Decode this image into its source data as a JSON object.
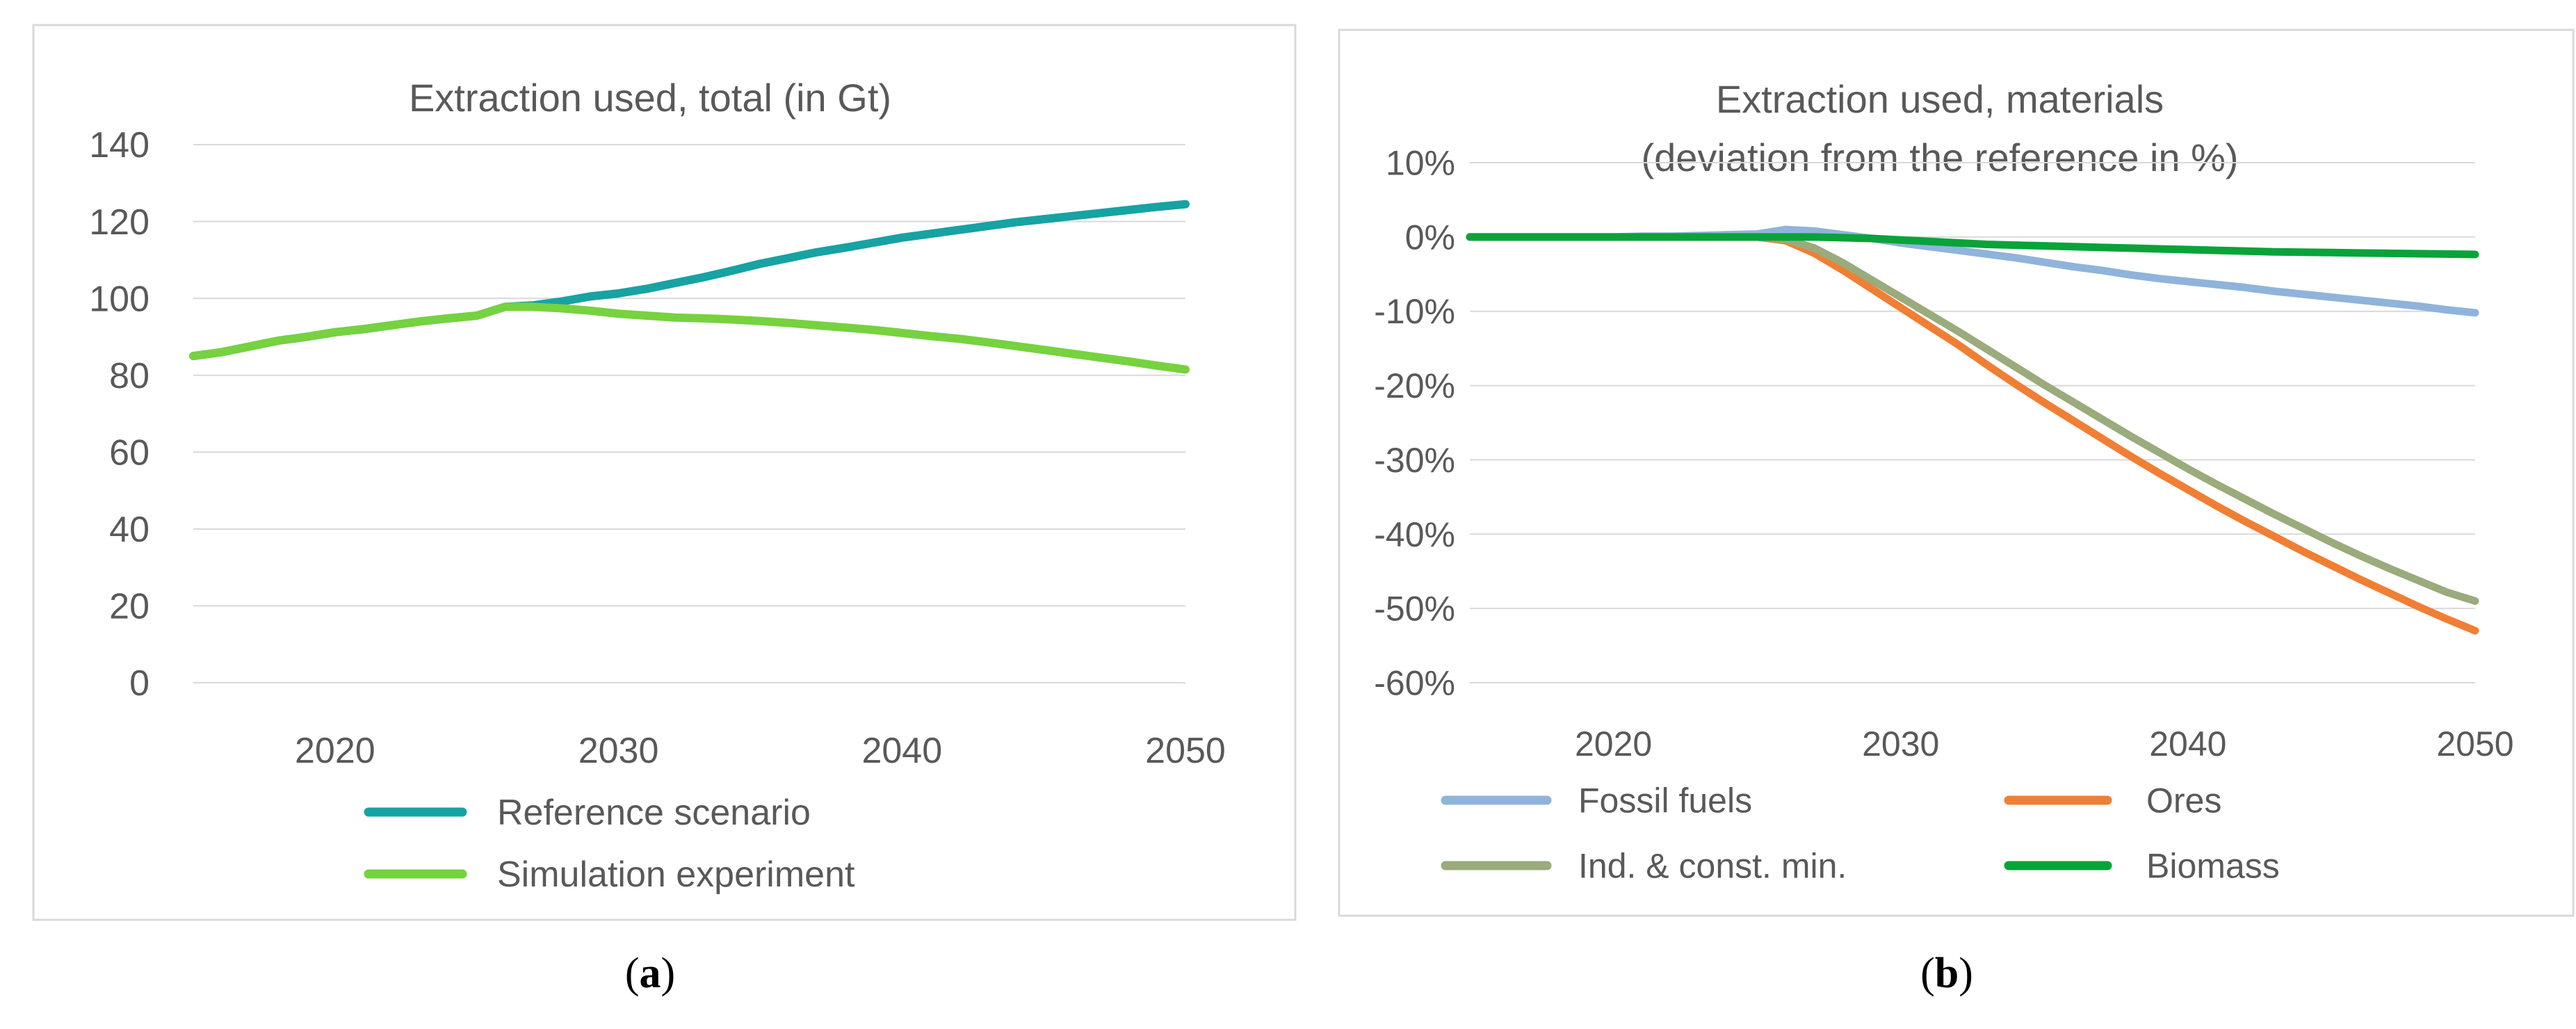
{
  "chart_data": [
    {
      "panel_id": "a",
      "type": "line",
      "title": "Extraction used, total (in Gt)",
      "caption": {
        "open": "(",
        "letter": "a",
        "close": ")"
      },
      "xlim": [
        2015,
        2050
      ],
      "ylim": [
        0,
        140
      ],
      "xticks": [
        2020,
        2030,
        2040,
        2050
      ],
      "yticks": [
        0,
        20,
        40,
        60,
        80,
        100,
        120,
        140
      ],
      "ytick_labels": [
        "0",
        "20",
        "40",
        "60",
        "80",
        "100",
        "120",
        "140"
      ],
      "grid": true,
      "legend_position": "bottom",
      "x": [
        2015,
        2016,
        2017,
        2018,
        2019,
        2020,
        2021,
        2022,
        2023,
        2024,
        2025,
        2026,
        2027,
        2028,
        2029,
        2030,
        2031,
        2032,
        2033,
        2034,
        2035,
        2036,
        2037,
        2038,
        2039,
        2040,
        2041,
        2042,
        2043,
        2044,
        2045,
        2046,
        2047,
        2048,
        2049,
        2050
      ],
      "series": [
        {
          "name": "Reference scenario",
          "color": "#17a2a3",
          "values": [
            85,
            86,
            87.5,
            89,
            90,
            91.2,
            92,
            93,
            94,
            94.8,
            95.5,
            97.8,
            98.2,
            99.2,
            100.5,
            101.3,
            102.5,
            104,
            105.5,
            107.2,
            109,
            110.5,
            112,
            113.2,
            114.5,
            115.8,
            116.8,
            117.8,
            118.8,
            119.8,
            120.6,
            121.4,
            122.2,
            123,
            123.8,
            124.5
          ]
        },
        {
          "name": "Simulation experiment",
          "color": "#76d23f",
          "values": [
            85,
            86,
            87.5,
            89,
            90,
            91.2,
            92,
            93,
            94,
            94.8,
            95.5,
            97.8,
            97.8,
            97.4,
            96.8,
            96,
            95.5,
            95,
            94.8,
            94.5,
            94.1,
            93.6,
            93,
            92.4,
            91.8,
            91,
            90.2,
            89.5,
            88.6,
            87.6,
            86.6,
            85.6,
            84.6,
            83.6,
            82.5,
            81.5
          ]
        }
      ]
    },
    {
      "panel_id": "b",
      "type": "line",
      "title_lines": [
        "Extraction used, materials",
        "(deviation from the reference in %)"
      ],
      "caption": {
        "open": "(",
        "letter": "b",
        "close": ")"
      },
      "xlim": [
        2015,
        2050
      ],
      "ylim": [
        -60,
        10
      ],
      "xticks": [
        2020,
        2030,
        2040,
        2050
      ],
      "yticks": [
        10,
        0,
        -10,
        -20,
        -30,
        -40,
        -50,
        -60
      ],
      "ytick_labels": [
        "10%",
        "0%",
        "-10%",
        "-20%",
        "-30%",
        "-40%",
        "-50%",
        "-60%"
      ],
      "grid": true,
      "legend_position": "bottom",
      "x": [
        2015,
        2016,
        2017,
        2018,
        2019,
        2020,
        2021,
        2022,
        2023,
        2024,
        2025,
        2026,
        2027,
        2028,
        2029,
        2030,
        2031,
        2032,
        2033,
        2034,
        2035,
        2036,
        2037,
        2038,
        2039,
        2040,
        2041,
        2042,
        2043,
        2044,
        2045,
        2046,
        2047,
        2048,
        2049,
        2050
      ],
      "series": [
        {
          "name": "Fossil fuels",
          "color": "#8fb4db",
          "values": [
            0,
            0,
            0,
            0,
            0,
            0,
            0.1,
            0.1,
            0.2,
            0.3,
            0.4,
            1,
            0.8,
            0.3,
            -0.2,
            -0.8,
            -1.3,
            -1.8,
            -2.3,
            -2.8,
            -3.4,
            -4,
            -4.5,
            -5.1,
            -5.6,
            -6,
            -6.4,
            -6.8,
            -7.3,
            -7.7,
            -8.1,
            -8.5,
            -8.9,
            -9.3,
            -9.8,
            -10.2
          ]
        },
        {
          "name": "Ores",
          "color": "#f07f34",
          "values": [
            0,
            0,
            0,
            0,
            0,
            0,
            0,
            0,
            0,
            0,
            0,
            -0.5,
            -2.2,
            -4.5,
            -7,
            -9.5,
            -12,
            -14.5,
            -17.2,
            -19.8,
            -22.3,
            -24.7,
            -27.1,
            -29.5,
            -31.8,
            -34,
            -36.2,
            -38.3,
            -40.3,
            -42.3,
            -44.2,
            -46.1,
            -47.9,
            -49.7,
            -51.4,
            -53
          ]
        },
        {
          "name": "Ind. & const. min.",
          "color": "#9aab7c",
          "values": [
            0,
            0,
            0,
            0,
            0,
            0,
            0,
            0,
            0,
            0,
            0,
            -0.3,
            -1.5,
            -3.5,
            -5.8,
            -8.1,
            -10.4,
            -12.7,
            -15.1,
            -17.5,
            -19.9,
            -22.2,
            -24.5,
            -26.8,
            -29,
            -31.2,
            -33.3,
            -35.3,
            -37.3,
            -39.2,
            -41.1,
            -42.9,
            -44.6,
            -46.2,
            -47.8,
            -49
          ]
        },
        {
          "name": "Biomass",
          "color": "#09a33a",
          "values": [
            0,
            0,
            0,
            0,
            0,
            0,
            0,
            0,
            0,
            0,
            0,
            0,
            0,
            -0.1,
            -0.2,
            -0.4,
            -0.6,
            -0.8,
            -1,
            -1.1,
            -1.2,
            -1.3,
            -1.4,
            -1.5,
            -1.6,
            -1.7,
            -1.8,
            -1.9,
            -2,
            -2.05,
            -2.1,
            -2.15,
            -2.2,
            -2.25,
            -2.3,
            -2.35
          ]
        }
      ]
    }
  ]
}
